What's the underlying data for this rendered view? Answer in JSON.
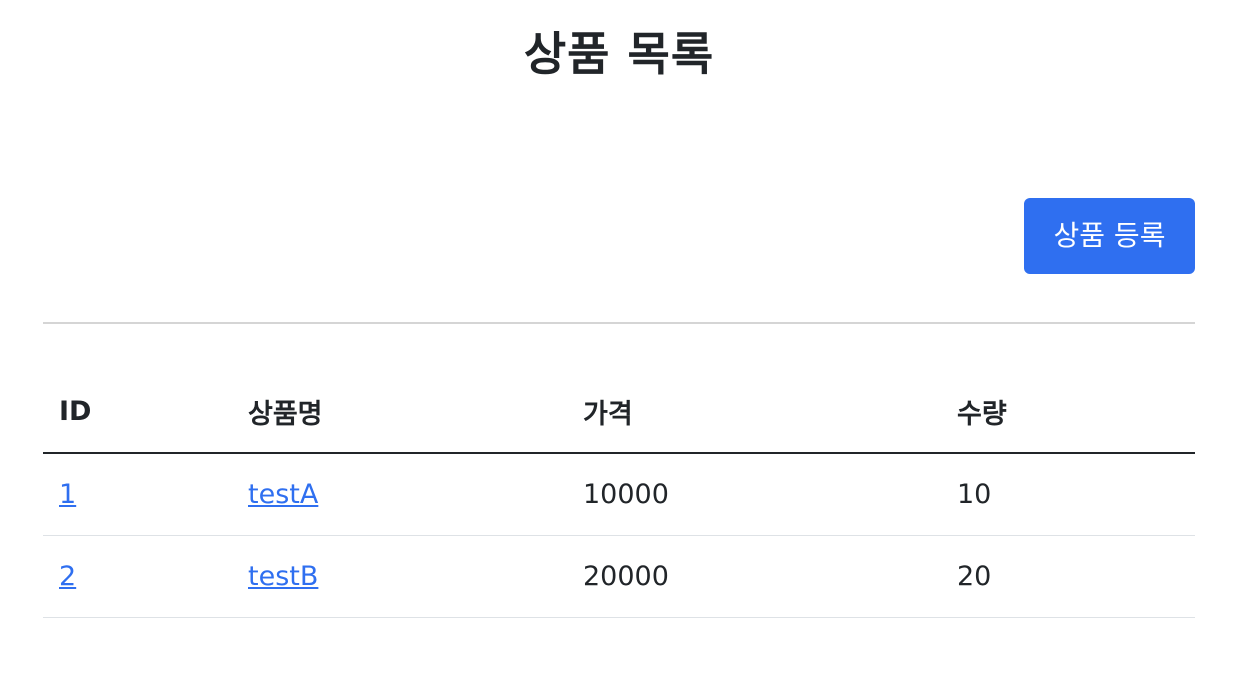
{
  "page": {
    "title": "상품 목록",
    "register_button_label": "상품 등록"
  },
  "colors": {
    "primary": "#2f6ff0",
    "text": "#212529"
  },
  "table": {
    "headers": [
      "ID",
      "상품명",
      "가격",
      "수량"
    ],
    "rows": [
      {
        "id": "1",
        "name": "testA",
        "price": "10000",
        "quantity": "10"
      },
      {
        "id": "2",
        "name": "testB",
        "price": "20000",
        "quantity": "20"
      }
    ]
  }
}
